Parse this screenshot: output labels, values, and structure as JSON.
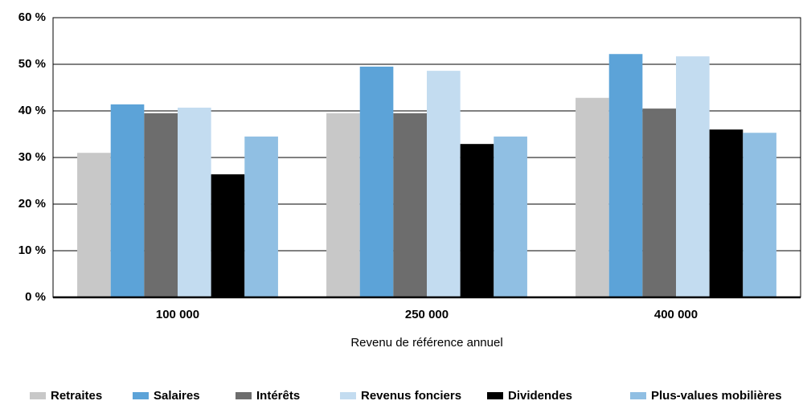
{
  "chart_data": {
    "type": "bar",
    "x_label": "Revenu de référence annuel",
    "categories": [
      "100 000",
      "250 000",
      "400 000"
    ],
    "series": [
      {
        "name": "Retraites",
        "color": "#c8c8c8",
        "values": [
          31,
          39.5,
          42.8
        ]
      },
      {
        "name": "Salaires",
        "color": "#5ca3d8",
        "values": [
          41.4,
          49.5,
          52.2
        ]
      },
      {
        "name": "Intérêts",
        "color": "#6d6d6d",
        "values": [
          39.5,
          39.5,
          40.5
        ]
      },
      {
        "name": "Revenus fonciers",
        "color": "#c3dcf0",
        "values": [
          40.7,
          48.6,
          51.7
        ]
      },
      {
        "name": "Dividendes",
        "color": "#000000",
        "values": [
          26.4,
          32.9,
          36
        ]
      },
      {
        "name": "Plus-values mobilières",
        "color": "#90bfe3",
        "values": [
          34.5,
          34.5,
          35.3
        ]
      }
    ],
    "ylim": [
      0,
      60
    ],
    "yticks": [
      {
        "value": 0,
        "label": "0 %"
      },
      {
        "value": 10,
        "label": "10 %"
      },
      {
        "value": 20,
        "label": "20 %"
      },
      {
        "value": 30,
        "label": "30 %"
      },
      {
        "value": 40,
        "label": "40 %"
      },
      {
        "value": 50,
        "label": "50 %"
      },
      {
        "value": 60,
        "label": "60 %"
      }
    ],
    "grid": true
  }
}
